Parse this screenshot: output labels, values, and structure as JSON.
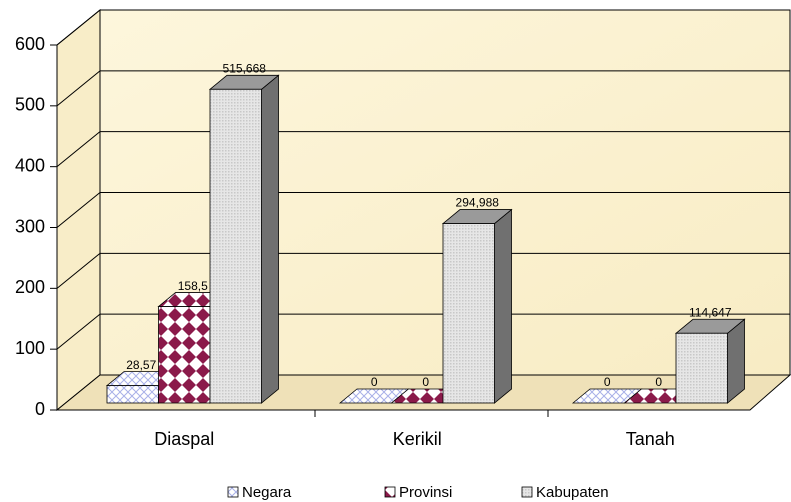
{
  "chart_data": {
    "type": "bar3d",
    "categories": [
      "Diaspal",
      "Kerikil",
      "Tanah"
    ],
    "series": [
      {
        "name": "Negara",
        "color": "#a8b0e8",
        "values": [
          28.57,
          0,
          0
        ],
        "value_labels": [
          "28,57",
          "0",
          "0"
        ]
      },
      {
        "name": "Provinsi",
        "color": "#8b1a4a",
        "values": [
          158.5,
          0,
          0
        ],
        "value_labels": [
          "158,5",
          "0",
          "0"
        ]
      },
      {
        "name": "Kabupaten",
        "color": "#c8c8c8",
        "values": [
          515.668,
          294.988,
          114.647
        ],
        "value_labels": [
          "515,668",
          "294,988",
          "114,647"
        ]
      }
    ],
    "ylim": [
      0,
      600
    ],
    "yticks": [
      0,
      100,
      200,
      300,
      400,
      500,
      600
    ],
    "grid": true,
    "legend": "bottom"
  }
}
